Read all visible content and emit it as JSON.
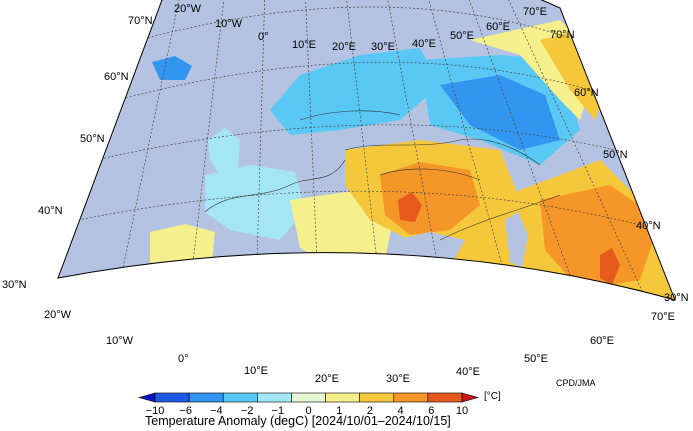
{
  "title": "Temperature Anomaly (degC) [2024/10/01–2024/10/15]",
  "credit": "CPD/JMA",
  "unit": "[°C]",
  "colorbar": {
    "ticks": [
      "−10",
      "−6",
      "−4",
      "−2",
      "−1",
      "0",
      "1",
      "2",
      "4",
      "6",
      "10"
    ],
    "colors": [
      "#0a14c8",
      "#1e5ae6",
      "#3296f0",
      "#5ac8f5",
      "#a5e6f5",
      "#e6f5d2",
      "#f5f08c",
      "#f5c83c",
      "#f59628",
      "#e65a1e",
      "#c8141e"
    ]
  },
  "lat_labels_left": [
    "70°N",
    "60°N",
    "50°N",
    "40°N",
    "30°N"
  ],
  "lat_labels_right": [
    "70°N",
    "60°N",
    "50°N",
    "40°N",
    "30°N"
  ],
  "lon_labels_top": [
    "20°W",
    "10°W",
    "0°",
    "10°E",
    "20°E",
    "30°E",
    "40°E",
    "50°E",
    "60°E",
    "70°E"
  ],
  "lon_labels_bottom": [
    "20°W",
    "10°W",
    "0°",
    "10°E",
    "20°E",
    "30°E",
    "40°E",
    "50°E",
    "60°E",
    "70°E"
  ],
  "colors": {
    "ocean": "#b4c3e1",
    "very_cold": "#1e5ae6",
    "cold": "#3296f0",
    "cool": "#5ac8f5",
    "near_cool": "#a5e6f5",
    "neutral": "#e6f5d2",
    "mild": "#f5f08c",
    "warm": "#f5c83c",
    "hot": "#f59628",
    "very_hot": "#e65a1e"
  }
}
